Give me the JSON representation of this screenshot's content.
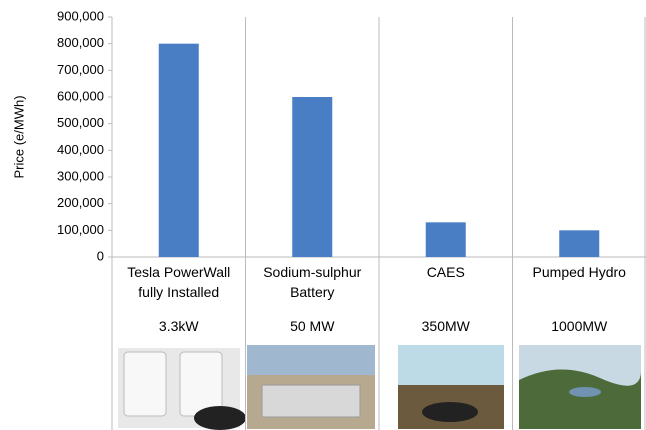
{
  "chart_data": {
    "type": "bar",
    "ylabel": "Price (e/MWh)",
    "categories": [
      "Tesla PowerWall fully Installed",
      "Sodium-sulphur Battery",
      "CAES",
      "Pumped Hydro"
    ],
    "capacities": [
      "3.3kW",
      "50 MW",
      "350MW",
      "1000MW"
    ],
    "values": [
      800000,
      600000,
      130000,
      100000
    ],
    "color": "#4a7ec4",
    "ylim": [
      0,
      900000
    ],
    "yticks": [
      0,
      {
        "value": 100000,
        "label": "100,000"
      },
      {
        "value": 200000,
        "label": "200,000"
      },
      {
        "value": 300000,
        "label": "300,000"
      },
      {
        "value": 400000,
        "label": "400,000"
      },
      {
        "value": 500000,
        "label": "500,000"
      },
      {
        "value": 600000,
        "label": "600,000"
      },
      {
        "value": 700000,
        "label": "700,000"
      },
      {
        "value": 800000,
        "label": "800,000"
      },
      {
        "value": 900000,
        "label": "900,000"
      }
    ]
  }
}
